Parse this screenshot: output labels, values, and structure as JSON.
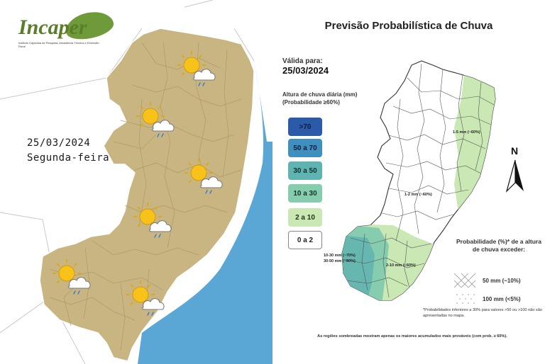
{
  "left_panel": {
    "logo_text": "Incaper",
    "logo_subtitle": "Instituto Capixaba de Pesquisa, Assistência Técnica e Extensão Rural",
    "date": "25/03/2024",
    "weekday": "Segunda-feira",
    "weather_icons": [
      {
        "name": "sun-cloud-rain-icon",
        "region": "norte"
      },
      {
        "name": "sun-cloud-rain-icon",
        "region": "noroeste"
      },
      {
        "name": "sun-cloud-rain-icon",
        "region": "centro-leste"
      },
      {
        "name": "sun-cloud-rain-icon",
        "region": "centro"
      },
      {
        "name": "sun-cloud-rain-icon",
        "region": "sudoeste"
      },
      {
        "name": "sun-cloud-rain-icon",
        "region": "sul"
      }
    ],
    "colors": {
      "state_fill": "#c8b582",
      "sea": "#5aa7d6",
      "border": "#9a8a5e"
    }
  },
  "right_panel": {
    "title": "Previsão Probabilística de Chuva",
    "valid_label": "Válida para:",
    "valid_date": "25/03/2024",
    "legend_title": "Altura de chuva diária (mm)",
    "legend_subtitle": "(Probabilidade ≥60%)",
    "legend": [
      {
        "label": ">70",
        "color": "#2b5aa8",
        "text_color": "#0d1c3a"
      },
      {
        "label": "50 a 70",
        "color": "#3f8fbf",
        "text_color": "#0d1c3a"
      },
      {
        "label": "30 a 50",
        "color": "#5fb3b0",
        "text_color": "#12302f"
      },
      {
        "label": "10 a 30",
        "color": "#86cdb0",
        "text_color": "#163326"
      },
      {
        "label": "2 a 10",
        "color": "#c9e8b4",
        "text_color": "#26331c"
      },
      {
        "label": "0 a 2",
        "color": "#ffffff",
        "text_color": "#222222"
      }
    ],
    "map_labels": {
      "north_east": "1-5 mm (~60%)",
      "center": "1-2 mm (~60%)",
      "south_west_1": "10-30 mm (~70%)",
      "south_west_2": "30-50 mm (~60%)",
      "south": "2-10 mm (~60%)"
    },
    "north_label": "N",
    "prob_title": "Probabilidade (%)* de a altura de chuva exceder:",
    "hatch_items": [
      {
        "label": "50 mm (~10%)",
        "icon": "crosshatch-pattern-icon"
      },
      {
        "label": "100 mm (<5%)",
        "icon": "dot-pattern-icon"
      }
    ],
    "footnote": "*Probabilidades inferiores a 30% para valores >50 ou >100 não são apresentadas no mapa.",
    "footer": "As regiões sombreadas mostram apenas os maiores acumulados mais prováveis (com prob. ≥ 60%)."
  }
}
